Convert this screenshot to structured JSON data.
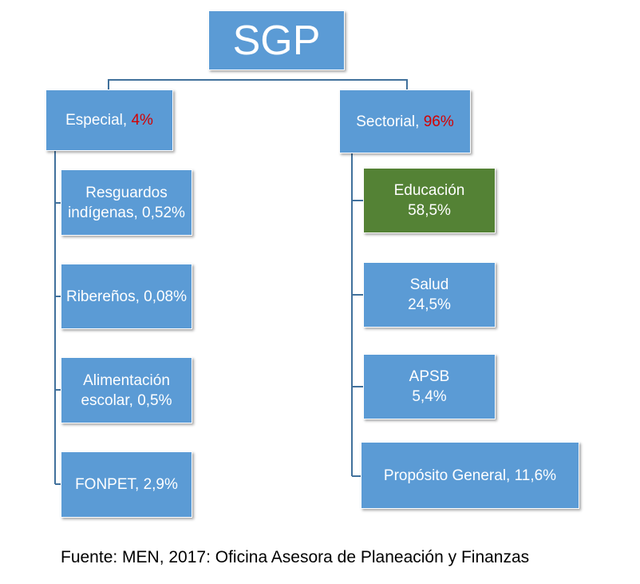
{
  "root": {
    "label": "SGP"
  },
  "branches": {
    "especial": {
      "label": "Especial, ",
      "percent": "4%",
      "children": [
        {
          "line1": "Resguardos",
          "line2": "indígenas, 0,52%"
        },
        {
          "line1": "Ribereños, 0,08%",
          "line2": ""
        },
        {
          "line1": "Alimentación",
          "line2": "escolar, 0,5%"
        },
        {
          "line1": "FONPET, 2,9%",
          "line2": ""
        }
      ]
    },
    "sectorial": {
      "label": "Sectorial, ",
      "percent": "96%",
      "children": [
        {
          "line1": "Educación",
          "line2": "58,5%"
        },
        {
          "line1": "Salud",
          "line2": "24,5%"
        },
        {
          "line1": "APSB",
          "line2": "5,4%"
        },
        {
          "line1": "Propósito General, 11,6%",
          "line2": ""
        }
      ]
    }
  },
  "source": "Fuente: MEN, 2017: Oficina Asesora de Planeación y Finanzas",
  "colors": {
    "box_fill": "#5b9bd5",
    "highlight_fill": "#548235",
    "percent_text": "#d40000",
    "connector": "#41719c"
  }
}
